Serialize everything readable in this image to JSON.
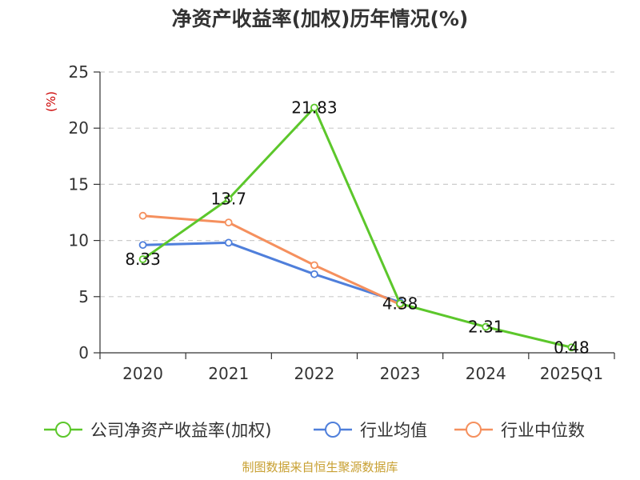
{
  "chart_data": {
    "type": "line",
    "title": "净资产收益率(加权)历年情况(%)",
    "unit_label": "(%)",
    "categories": [
      "2020",
      "2021",
      "2022",
      "2023",
      "2024",
      "2025Q1"
    ],
    "ylim": [
      0,
      25
    ],
    "yticks": [
      0,
      5,
      10,
      15,
      20,
      25
    ],
    "grid": true,
    "legend_position": "bottom",
    "series": [
      {
        "name": "公司净资产收益率(加权)",
        "color": "#5cc72b",
        "values": [
          8.33,
          13.7,
          21.83,
          4.38,
          2.31,
          0.48
        ],
        "labels": [
          "8.33",
          "13.7",
          "21.83",
          "4.38",
          "2.31",
          "0.48"
        ]
      },
      {
        "name": "行业均值",
        "color": "#4f7fdb",
        "values": [
          9.6,
          9.8,
          7.0,
          4.5,
          null,
          null
        ]
      },
      {
        "name": "行业中位数",
        "color": "#f5905e",
        "values": [
          12.2,
          11.6,
          7.8,
          4.3,
          null,
          null
        ]
      }
    ]
  },
  "colors": {
    "unit_label": "#cc0000",
    "source": "#c8a032",
    "grid": "#cccccc",
    "axis": "#333333"
  },
  "source_text": "制图数据来自恒生聚源数据库"
}
